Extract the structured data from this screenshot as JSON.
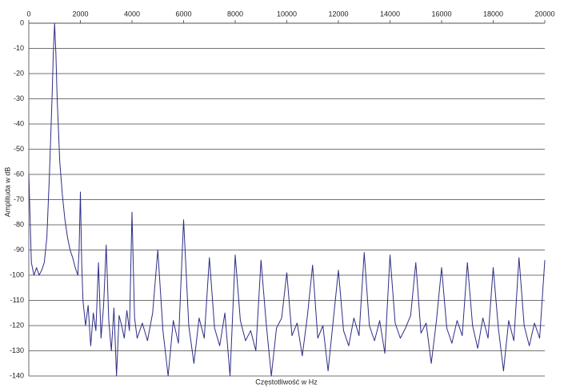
{
  "chart_data": {
    "type": "line",
    "xlabel": "Częstotliwość w Hz",
    "ylabel": "Amplituda w dB",
    "color": "#2e2e86",
    "grid": true,
    "xaxis_position": "top",
    "xlim": [
      0,
      20000
    ],
    "xticks": [
      0,
      2000,
      4000,
      6000,
      8000,
      10000,
      12000,
      14000,
      16000,
      18000,
      20000
    ],
    "ylim": [
      -140,
      0
    ],
    "yticks": [
      0,
      -10,
      -20,
      -30,
      -40,
      -50,
      -60,
      -70,
      -80,
      -90,
      -100,
      -110,
      -120,
      -130,
      -140
    ],
    "x": [
      0,
      100,
      200,
      300,
      400,
      500,
      600,
      700,
      800,
      900,
      950,
      1000,
      1050,
      1100,
      1200,
      1300,
      1400,
      1500,
      1600,
      1700,
      1800,
      1900,
      1950,
      2000,
      2050,
      2100,
      2200,
      2300,
      2400,
      2500,
      2600,
      2700,
      2800,
      2900,
      3000,
      3100,
      3200,
      3300,
      3400,
      3500,
      3600,
      3700,
      3800,
      3900,
      4000,
      4100,
      4200,
      4400,
      4600,
      4800,
      5000,
      5200,
      5400,
      5600,
      5800,
      6000,
      6200,
      6400,
      6600,
      6800,
      7000,
      7200,
      7400,
      7600,
      7800,
      8000,
      8200,
      8400,
      8600,
      8800,
      9000,
      9200,
      9400,
      9600,
      9800,
      10000,
      10200,
      10400,
      10600,
      10800,
      11000,
      11200,
      11400,
      11600,
      11800,
      12000,
      12200,
      12400,
      12600,
      12800,
      13000,
      13200,
      13400,
      13600,
      13800,
      14000,
      14200,
      14400,
      14600,
      14800,
      15000,
      15200,
      15400,
      15600,
      15800,
      16000,
      16200,
      16400,
      16600,
      16800,
      17000,
      17200,
      17400,
      17600,
      17800,
      18000,
      18200,
      18400,
      18600,
      18800,
      19000,
      19200,
      19400,
      19600,
      19800,
      20000
    ],
    "values": [
      -60,
      -95,
      -100,
      -97,
      -100,
      -98,
      -95,
      -85,
      -60,
      -30,
      -12,
      0,
      -12,
      -30,
      -55,
      -68,
      -78,
      -85,
      -90,
      -93,
      -97,
      -100,
      -90,
      -67,
      -95,
      -110,
      -120,
      -112,
      -128,
      -115,
      -122,
      -95,
      -125,
      -112,
      -88,
      -118,
      -130,
      -113,
      -140,
      -116,
      -120,
      -125,
      -114,
      -122,
      -75,
      -117,
      -125,
      -119,
      -126,
      -115,
      -90,
      -122,
      -140,
      -118,
      -127,
      -78,
      -120,
      -135,
      -117,
      -125,
      -93,
      -121,
      -128,
      -115,
      -140,
      -92,
      -118,
      -126,
      -122,
      -130,
      -94,
      -119,
      -140,
      -121,
      -117,
      -99,
      -124,
      -119,
      -132,
      -116,
      -96,
      -125,
      -120,
      -138,
      -118,
      -98,
      -122,
      -128,
      -117,
      -124,
      -91,
      -120,
      -126,
      -118,
      -131,
      -92,
      -119,
      -125,
      -121,
      -116,
      -95,
      -123,
      -119,
      -135,
      -118,
      -97,
      -121,
      -127,
      -118,
      -124,
      -95,
      -120,
      -129,
      -117,
      -125,
      -97,
      -121,
      -138,
      -118,
      -126,
      -93,
      -120,
      -128,
      -119,
      -125,
      -94
    ]
  }
}
